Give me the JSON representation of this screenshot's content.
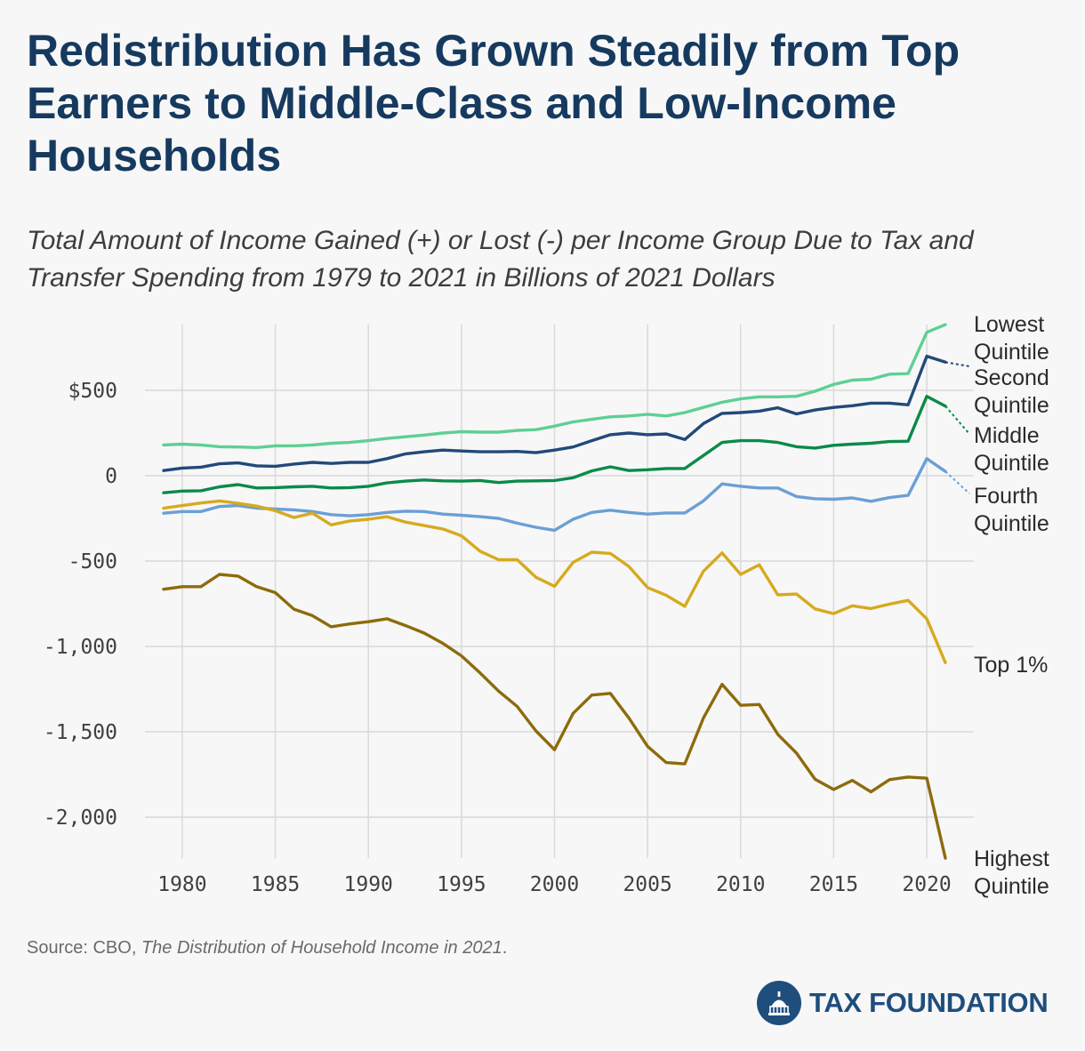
{
  "header": {
    "title": "Redistribution Has Grown Steadily from Top Earners to Middle-Class and Low-Income Households",
    "subtitle": "Total Amount of Income Gained (+) or Lost (-) per Income Group Due to Tax and Transfer Spending from 1979 to 2021 in Billions of 2021 Dollars"
  },
  "footer": {
    "source_prefix": "Source: CBO, ",
    "source_work": "The Distribution of Household Income in 2021",
    "source_suffix": ".",
    "logo_text": "TAX FOUNDATION",
    "logo_icon": "capitol-dome-icon"
  },
  "chart_data": {
    "type": "line",
    "title": "Redistribution Has Grown Steadily from Top Earners to Middle-Class and Low-Income Households",
    "subtitle": "Total Amount of Income Gained (+) or Lost (-) per Income Group Due to Tax and Transfer Spending from 1979 to 2021 in Billions of 2021 Dollars",
    "xlabel": "",
    "ylabel": "",
    "xlim": [
      1979,
      2021
    ],
    "ylim": [
      -2200,
      850
    ],
    "grid": true,
    "legend": "direct labels at right end of lines",
    "x_ticks": [
      1980,
      1985,
      1990,
      1995,
      2000,
      2005,
      2010,
      2015,
      2020
    ],
    "x_tick_labels": [
      "1980",
      "1985",
      "1990",
      "1995",
      "2000",
      "2005",
      "2010",
      "2015",
      "2020"
    ],
    "y_ticks": [
      500,
      0,
      -500,
      -1000,
      -1500,
      -2000
    ],
    "y_tick_labels": [
      "$500",
      "0",
      "-500",
      "-1,000",
      "-1,500",
      "-2,000"
    ],
    "x": [
      1979,
      1980,
      1981,
      1982,
      1983,
      1984,
      1985,
      1986,
      1987,
      1988,
      1989,
      1990,
      1991,
      1992,
      1993,
      1994,
      1995,
      1996,
      1997,
      1998,
      1999,
      2000,
      2001,
      2002,
      2003,
      2004,
      2005,
      2006,
      2007,
      2008,
      2009,
      2010,
      2011,
      2012,
      2013,
      2014,
      2015,
      2016,
      2017,
      2018,
      2019,
      2020,
      2021
    ],
    "series": [
      {
        "name": "Lowest Quintile",
        "label_lines": [
          "Lowest",
          "Quintile"
        ],
        "color": "#5fcf94",
        "values": [
          180,
          185,
          180,
          170,
          168,
          165,
          175,
          175,
          180,
          190,
          195,
          205,
          218,
          228,
          238,
          250,
          258,
          255,
          255,
          265,
          270,
          290,
          315,
          330,
          345,
          350,
          360,
          350,
          370,
          400,
          430,
          450,
          462,
          462,
          465,
          495,
          535,
          560,
          565,
          595,
          598,
          840,
          885
        ]
      },
      {
        "name": "Second Quintile",
        "label_lines": [
          "Second",
          "Quintile"
        ],
        "color": "#22497a",
        "values": [
          30,
          45,
          50,
          70,
          75,
          58,
          55,
          68,
          78,
          72,
          78,
          78,
          100,
          128,
          140,
          150,
          145,
          140,
          140,
          142,
          135,
          150,
          168,
          205,
          240,
          250,
          240,
          245,
          212,
          305,
          365,
          370,
          378,
          398,
          362,
          385,
          400,
          410,
          425,
          425,
          415,
          700,
          665
        ]
      },
      {
        "name": "Middle Quintile",
        "label_lines": [
          "Middle",
          "Quintile"
        ],
        "color": "#0b8a4a",
        "values": [
          -100,
          -90,
          -88,
          -65,
          -52,
          -72,
          -70,
          -65,
          -62,
          -72,
          -70,
          -62,
          -42,
          -32,
          -25,
          -30,
          -32,
          -28,
          -40,
          -32,
          -30,
          -28,
          -12,
          28,
          52,
          30,
          35,
          42,
          42,
          118,
          195,
          205,
          205,
          195,
          170,
          162,
          178,
          185,
          190,
          200,
          202,
          465,
          408
        ]
      },
      {
        "name": "Fourth Quintile",
        "label_lines": [
          "Fourth",
          "Quintile"
        ],
        "color": "#6b9fd6",
        "values": [
          -220,
          -210,
          -210,
          -180,
          -175,
          -190,
          -195,
          -200,
          -210,
          -228,
          -235,
          -228,
          -215,
          -208,
          -210,
          -225,
          -232,
          -240,
          -250,
          -278,
          -302,
          -320,
          -255,
          -215,
          -202,
          -215,
          -225,
          -218,
          -218,
          -148,
          -48,
          -62,
          -72,
          -72,
          -122,
          -135,
          -138,
          -130,
          -150,
          -128,
          -115,
          100,
          25
        ]
      },
      {
        "name": "Top 1%",
        "label_lines": [
          "Top 1%"
        ],
        "color": "#d6aa1e",
        "values": [
          -190,
          -175,
          -160,
          -148,
          -162,
          -178,
          -205,
          -245,
          -220,
          -288,
          -265,
          -255,
          -240,
          -272,
          -292,
          -312,
          -352,
          -442,
          -492,
          -492,
          -595,
          -648,
          -508,
          -448,
          -455,
          -532,
          -655,
          -700,
          -765,
          -560,
          -452,
          -578,
          -522,
          -698,
          -693,
          -780,
          -808,
          -762,
          -778,
          -752,
          -730,
          -838,
          -1095
        ]
      },
      {
        "name": "Highest Quintile",
        "label_lines": [
          "Highest",
          "Quintile"
        ],
        "color": "#8d6b0c",
        "values": [
          -665,
          -650,
          -650,
          -578,
          -588,
          -650,
          -685,
          -782,
          -820,
          -885,
          -868,
          -855,
          -838,
          -878,
          -922,
          -982,
          -1055,
          -1155,
          -1262,
          -1352,
          -1495,
          -1605,
          -1392,
          -1285,
          -1275,
          -1420,
          -1585,
          -1680,
          -1688,
          -1420,
          -1222,
          -1345,
          -1340,
          -1515,
          -1625,
          -1778,
          -1838,
          -1785,
          -1852,
          -1780,
          -1765,
          -1772,
          -2240
        ]
      }
    ]
  }
}
